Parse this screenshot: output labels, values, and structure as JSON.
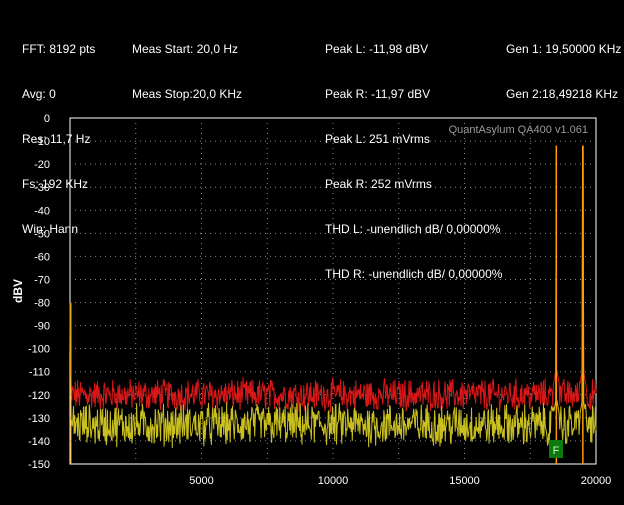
{
  "info": {
    "col1": [
      "FFT: 8192 pts",
      "Avg: 0",
      "Res: 11,7 Hz",
      "Fs: 192 KHz",
      "Win: Hann"
    ],
    "col2": [
      "Meas Start: 20,0 Hz",
      "Meas Stop:20,0 KHz"
    ],
    "col3": [
      "Peak L: -11,98 dBV",
      "Peak R: -11,97 dBV",
      "Peak L: 251 mVrms",
      "Peak R: 252 mVrms",
      "THD L: -unendlich dB/ 0,00000%",
      "THD R: -unendlich dB/ 0,00000%"
    ],
    "col4": [
      "Gen 1: 19,50000 KHz",
      "Gen 2:18,49218 KHz"
    ]
  },
  "watermark": "QuantAsylum QA400 v1.061",
  "marker_label": "F",
  "chart_data": {
    "type": "line",
    "title": "",
    "xlabel": "",
    "ylabel": "dBV",
    "xlim": [
      0,
      20000
    ],
    "ylim": [
      -150,
      0
    ],
    "x_ticks": [
      5000,
      10000,
      15000,
      20000
    ],
    "y_ticks": [
      0,
      -10,
      -20,
      -30,
      -40,
      -50,
      -60,
      -70,
      -80,
      -90,
      -100,
      -110,
      -120,
      -130,
      -140,
      -150
    ],
    "grid": true,
    "colors": {
      "left": "#ff9a00",
      "right": "#d81818",
      "floor_left": "#c9c020",
      "background": "#000000",
      "grid": "#8a8a8a"
    },
    "series": [
      {
        "name": "",
        "color": "#d81818",
        "noise_floor": {
          "x_range": [
            0,
            20000
          ],
          "mean": -120,
          "spread": 6
        },
        "peaks": [
          [
            18492.18,
            -11.97
          ],
          [
            19500.0,
            -11.97
          ]
        ]
      },
      {
        "name": "",
        "color": "#ff9a00",
        "noise_floor": {
          "x_range": [
            0,
            20000
          ],
          "mean": -133,
          "spread": 8
        },
        "peaks": [
          [
            18492.18,
            -11.98
          ],
          [
            19500.0,
            -11.98
          ]
        ]
      }
    ],
    "markers": [
      {
        "x": 18492.18,
        "y": -146,
        "label": "F"
      }
    ]
  }
}
